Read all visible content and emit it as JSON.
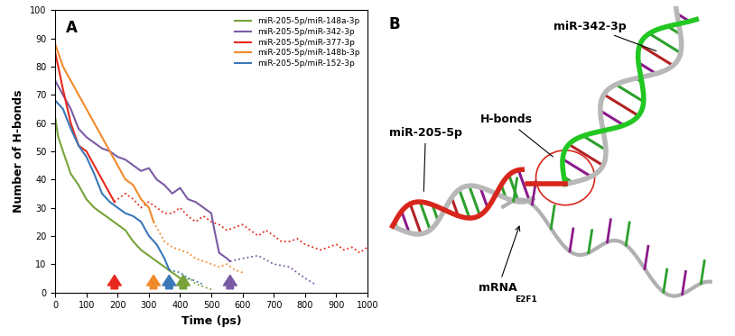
{
  "chart_data": {
    "type": "line",
    "title": "A",
    "x_label": "Time (ps)",
    "y_label": "Number of H-bonds",
    "xlim": [
      0,
      1000
    ],
    "xticks": [
      0,
      100,
      200,
      300,
      400,
      500,
      600,
      700,
      800,
      900,
      1000
    ],
    "ylim": [
      0,
      100
    ],
    "yticks": [
      0,
      10,
      20,
      30,
      40,
      50,
      60,
      70,
      80,
      90,
      100
    ],
    "legend": "upper right",
    "series": [
      {
        "name": "miR-205-5p/miR-148a-3p",
        "color": "#77a33a",
        "arrow_x": 410,
        "x": [
          0,
          10,
          25,
          50,
          75,
          100,
          125,
          150,
          175,
          200,
          225,
          250,
          275,
          300,
          325,
          350,
          375,
          400,
          410,
          430,
          450,
          475,
          500
        ],
        "values": [
          62,
          55,
          50,
          42,
          38,
          33,
          30,
          28,
          26,
          24,
          22,
          18,
          15,
          13,
          11,
          9,
          7,
          5,
          4,
          5,
          3,
          2,
          1
        ]
      },
      {
        "name": "miR-205-5p/miR-342-3p",
        "color": "#7b5ba3",
        "arrow_x": 560,
        "x": [
          0,
          25,
          50,
          75,
          100,
          125,
          150,
          175,
          200,
          225,
          250,
          275,
          300,
          325,
          350,
          375,
          400,
          425,
          450,
          475,
          500,
          510,
          525,
          550,
          560,
          600,
          650,
          700,
          750,
          800,
          830
        ],
        "values": [
          75,
          70,
          65,
          58,
          55,
          53,
          51,
          50,
          48,
          47,
          45,
          43,
          44,
          40,
          38,
          35,
          37,
          33,
          32,
          30,
          28,
          22,
          14,
          12,
          11,
          12,
          13,
          10,
          9,
          5,
          3
        ]
      },
      {
        "name": "miR-205-5p/miR-377-3p",
        "color": "#e8281e",
        "arrow_x": 190,
        "x": [
          0,
          10,
          25,
          50,
          75,
          100,
          125,
          150,
          175,
          190,
          200,
          225,
          250,
          275,
          300,
          325,
          350,
          375,
          400,
          425,
          450,
          475,
          500,
          525,
          550,
          575,
          600,
          625,
          650,
          675,
          700,
          725,
          750,
          775,
          800,
          825,
          850,
          875,
          900,
          925,
          950,
          975,
          1000
        ],
        "values": [
          85,
          80,
          72,
          60,
          52,
          50,
          45,
          40,
          35,
          32,
          33,
          35,
          33,
          30,
          32,
          30,
          28,
          28,
          30,
          27,
          25,
          27,
          25,
          24,
          22,
          23,
          24,
          22,
          20,
          22,
          20,
          18,
          18,
          19,
          17,
          16,
          15,
          16,
          17,
          15,
          16,
          14,
          16
        ]
      },
      {
        "name": "miR-205-5p/miR-148b-3p",
        "color": "#f08a2b",
        "arrow_x": 315,
        "x": [
          0,
          25,
          50,
          75,
          100,
          125,
          150,
          175,
          200,
          225,
          250,
          275,
          300,
          315,
          350,
          375,
          400,
          425,
          450,
          475,
          500,
          525,
          550,
          575,
          600
        ],
        "values": [
          88,
          80,
          75,
          70,
          65,
          60,
          55,
          50,
          45,
          40,
          38,
          33,
          30,
          25,
          18,
          16,
          15,
          14,
          12,
          11,
          10,
          9,
          10,
          8,
          7
        ]
      },
      {
        "name": "miR-205-5p/miR-152-3p",
        "color": "#3a78b8",
        "arrow_x": 365,
        "x": [
          0,
          25,
          50,
          75,
          100,
          125,
          150,
          175,
          200,
          225,
          250,
          275,
          300,
          325,
          350,
          365,
          400,
          425,
          450,
          470
        ],
        "values": [
          68,
          65,
          58,
          52,
          48,
          42,
          35,
          32,
          30,
          28,
          27,
          25,
          20,
          17,
          12,
          8,
          7,
          5,
          4,
          3
        ]
      }
    ]
  },
  "diagram": {
    "panel_label": "B",
    "upper_strand": "miR-342-3p",
    "left_strand": "miR-205-5p",
    "bond_label": "H-bonds",
    "mrna": {
      "text": "mRNA",
      "subscript": "E2F1"
    }
  }
}
